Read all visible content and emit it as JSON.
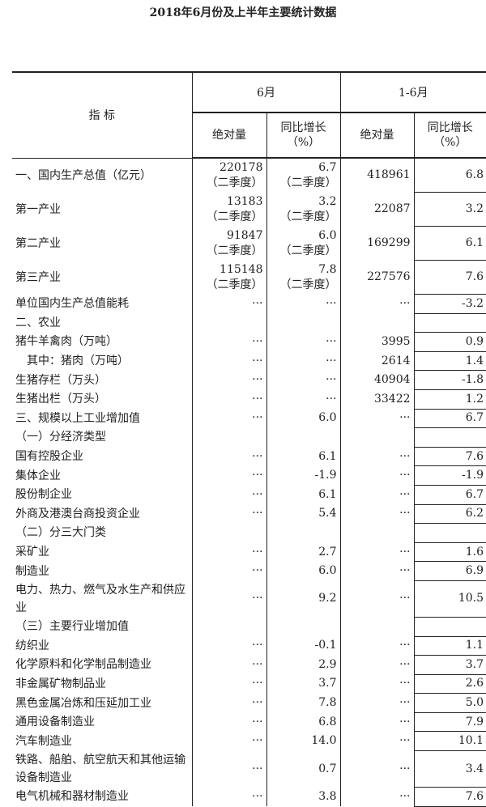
{
  "title": "2018年6月份及上半年主要统计数据",
  "header": {
    "indicator": "指  标",
    "june": "6月",
    "jan_jun": "1-6月",
    "absolute": "绝对量",
    "yoy": "同比增长",
    "yoy_unit": "（%）"
  },
  "rows": [
    {
      "label": "一、国内生产总值（亿元）",
      "m_abs": "220178",
      "m_abs_note": "（二季度）",
      "m_yoy": "6.7",
      "m_yoy_note": "（二季度）",
      "h_abs": "418961",
      "h_yoy": "6.8",
      "type": "gdp"
    },
    {
      "label": "第一产业",
      "m_abs": "13183",
      "m_abs_note": "（二季度）",
      "m_yoy": "3.2",
      "m_yoy_note": "（二季度）",
      "h_abs": "22087",
      "h_yoy": "3.2",
      "type": "gdp"
    },
    {
      "label": "第二产业",
      "m_abs": "91847",
      "m_abs_note": "（二季度）",
      "m_yoy": "6.0",
      "m_yoy_note": "（二季度）",
      "h_abs": "169299",
      "h_yoy": "6.1",
      "type": "gdp"
    },
    {
      "label": "第三产业",
      "m_abs": "115148",
      "m_abs_note": "（二季度）",
      "m_yoy": "7.8",
      "m_yoy_note": "（二季度）",
      "h_abs": "227576",
      "h_yoy": "7.6",
      "type": "gdp"
    },
    {
      "label": "单位国内生产总值能耗",
      "m_abs": "···",
      "m_yoy": "···",
      "h_abs": "···",
      "h_yoy": "-3.2"
    },
    {
      "label": "二、农业",
      "m_abs": "",
      "m_yoy": "",
      "h_abs": "",
      "h_yoy": ""
    },
    {
      "label": "猪牛羊禽肉（万吨）",
      "m_abs": "···",
      "m_yoy": "···",
      "h_abs": "3995",
      "h_yoy": "0.9"
    },
    {
      "label": "其中：猪肉（万吨）",
      "m_abs": "···",
      "m_yoy": "···",
      "h_abs": "2614",
      "h_yoy": "1.4",
      "indent": true
    },
    {
      "label": "生猪存栏（万头）",
      "m_abs": "···",
      "m_yoy": "···",
      "h_abs": "40904",
      "h_yoy": "-1.8"
    },
    {
      "label": "生猪出栏（万头）",
      "m_abs": "···",
      "m_yoy": "···",
      "h_abs": "33422",
      "h_yoy": "1.2"
    },
    {
      "label": "三、规模以上工业增加值",
      "m_abs": "···",
      "m_yoy": "6.0",
      "h_abs": "···",
      "h_yoy": "6.7"
    },
    {
      "label": "（一）分经济类型",
      "m_abs": "",
      "m_yoy": "",
      "h_abs": "",
      "h_yoy": ""
    },
    {
      "label": "国有控股企业",
      "m_abs": "···",
      "m_yoy": "6.1",
      "h_abs": "···",
      "h_yoy": "7.6"
    },
    {
      "label": "集体企业",
      "m_abs": "···",
      "m_yoy": "-1.9",
      "h_abs": "···",
      "h_yoy": "-1.9"
    },
    {
      "label": "股份制企业",
      "m_abs": "···",
      "m_yoy": "6.1",
      "h_abs": "···",
      "h_yoy": "6.7"
    },
    {
      "label": "外商及港澳台商投资企业",
      "m_abs": "···",
      "m_yoy": "5.4",
      "h_abs": "···",
      "h_yoy": "6.2"
    },
    {
      "label": "（二）分三大门类",
      "m_abs": "",
      "m_yoy": "",
      "h_abs": "",
      "h_yoy": ""
    },
    {
      "label": "采矿业",
      "m_abs": "···",
      "m_yoy": "2.7",
      "h_abs": "···",
      "h_yoy": "1.6"
    },
    {
      "label": "制造业",
      "m_abs": "···",
      "m_yoy": "6.0",
      "h_abs": "···",
      "h_yoy": "6.9"
    },
    {
      "label": "电力、热力、燃气及水生产和供应业",
      "m_abs": "···",
      "m_yoy": "9.2",
      "h_abs": "···",
      "h_yoy": "10.5",
      "type": "double"
    },
    {
      "label": "（三）主要行业增加值",
      "m_abs": "",
      "m_yoy": "",
      "h_abs": "",
      "h_yoy": ""
    },
    {
      "label": "纺织业",
      "m_abs": "···",
      "m_yoy": "-0.1",
      "h_abs": "···",
      "h_yoy": "1.1"
    },
    {
      "label": "化学原料和化学制品制造业",
      "m_abs": "···",
      "m_yoy": "2.9",
      "h_abs": "···",
      "h_yoy": "3.7"
    },
    {
      "label": "非金属矿物制品业",
      "m_abs": "···",
      "m_yoy": "3.7",
      "h_abs": "···",
      "h_yoy": "2.6"
    },
    {
      "label": "黑色金属冶炼和压延加工业",
      "m_abs": "···",
      "m_yoy": "7.8",
      "h_abs": "···",
      "h_yoy": "5.0"
    },
    {
      "label": "通用设备制造业",
      "m_abs": "···",
      "m_yoy": "6.8",
      "h_abs": "···",
      "h_yoy": "7.9"
    },
    {
      "label": "汽车制造业",
      "m_abs": "···",
      "m_yoy": "14.0",
      "h_abs": "···",
      "h_yoy": "10.1"
    },
    {
      "label": "铁路、船舶、航空航天和其他运输设备制造业",
      "m_abs": "···",
      "m_yoy": "0.7",
      "h_abs": "···",
      "h_yoy": "3.4",
      "type": "double"
    },
    {
      "label": "电气机械和器材制造业",
      "m_abs": "···",
      "m_yoy": "3.8",
      "h_abs": "···",
      "h_yoy": "7.6"
    }
  ]
}
